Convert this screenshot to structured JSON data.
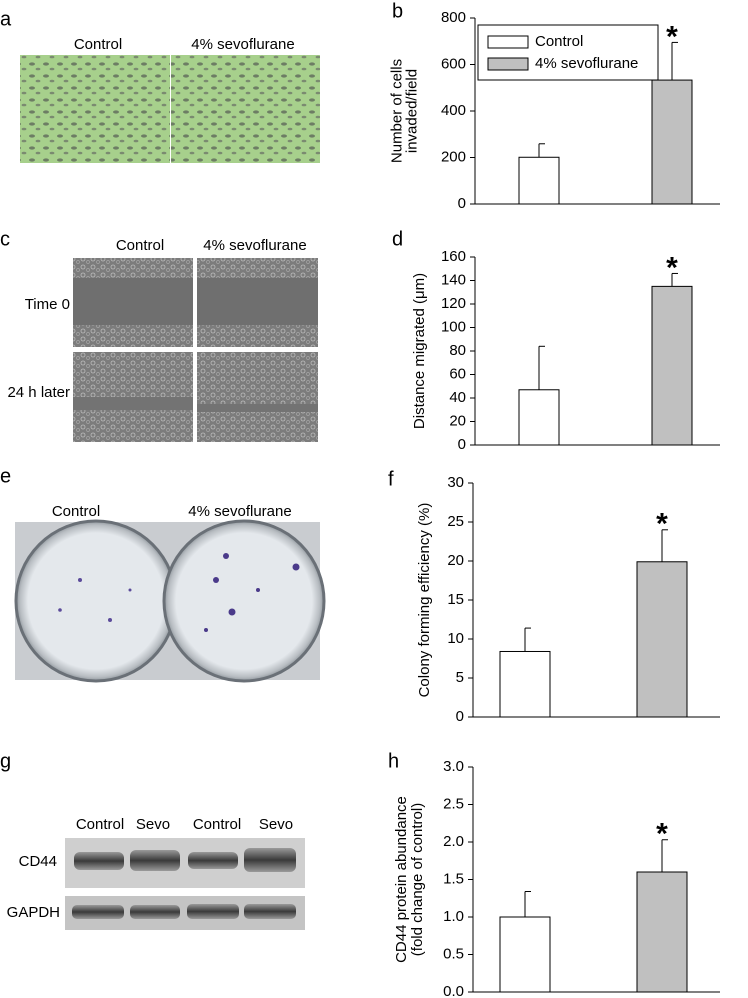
{
  "chart_data": [
    {
      "type": "bar",
      "panel": "b",
      "ylabel": [
        "Number of cells",
        "invaded/field"
      ],
      "categories": [
        null,
        null
      ],
      "values": [
        201,
        533
      ],
      "errors": [
        58,
        162
      ],
      "colors": [
        "#ffffff",
        "#c0c0c0"
      ],
      "significance": [
        null,
        "*"
      ],
      "legend": [
        "Control",
        "4% sevoflurane"
      ],
      "legend_loc": "upper left",
      "ylim": [
        0,
        800
      ],
      "yticks": [
        0,
        200,
        400,
        600,
        800
      ]
    },
    {
      "type": "bar",
      "panel": "d",
      "ylabel": [
        "Distance migrated (μm)"
      ],
      "categories": [
        null,
        null
      ],
      "values": [
        47,
        135
      ],
      "errors": [
        37,
        11
      ],
      "colors": [
        "#ffffff",
        "#c0c0c0"
      ],
      "significance": [
        null,
        "*"
      ],
      "ylim": [
        0,
        160
      ],
      "yticks": [
        0,
        20,
        40,
        60,
        80,
        100,
        120,
        140,
        160
      ]
    },
    {
      "type": "bar",
      "panel": "f",
      "ylabel": [
        "Colony forming efficiency (%)"
      ],
      "categories": [
        null,
        null
      ],
      "values": [
        8.4,
        19.9
      ],
      "errors": [
        3,
        4.1
      ],
      "colors": [
        "#ffffff",
        "#c0c0c0"
      ],
      "significance": [
        null,
        "*"
      ],
      "ylim": [
        0,
        30
      ],
      "yticks": [
        0,
        5,
        10,
        15,
        20,
        25,
        30
      ]
    },
    {
      "type": "bar",
      "panel": "h",
      "ylabel": [
        "CD44 protein abundance",
        "(fold change of control)"
      ],
      "categories": [
        null,
        null
      ],
      "values": [
        1.0,
        1.6
      ],
      "errors": [
        0.34,
        0.43
      ],
      "colors": [
        "#ffffff",
        "#c0c0c0"
      ],
      "significance": [
        null,
        "*"
      ],
      "ylim": [
        0,
        3
      ],
      "yticks": [
        {
          "value": 0,
          "label": "0.0"
        },
        {
          "value": 0.5,
          "label": "0.5"
        },
        {
          "value": 1,
          "label": "1.0"
        },
        {
          "value": 1.5,
          "label": "1.5"
        },
        {
          "value": 2,
          "label": "2.0"
        },
        {
          "value": 2.5,
          "label": "2.5"
        },
        {
          "value": 3,
          "label": "3.0"
        }
      ]
    }
  ],
  "image_panels": [
    {
      "panel": "a",
      "columns": [
        "Control",
        "4% sevoflurane"
      ]
    },
    {
      "panel": "c",
      "columns": [
        "Control",
        "4% sevoflurane"
      ],
      "rows": [
        "Time 0",
        "24 h later"
      ]
    },
    {
      "panel": "e",
      "columns": [
        "Control",
        "4% sevoflurane"
      ]
    },
    {
      "panel": "g",
      "columns": [
        "Control",
        "Sevo",
        "Control",
        "Sevo"
      ],
      "rows": [
        "CD44",
        "GAPDH"
      ]
    }
  ]
}
